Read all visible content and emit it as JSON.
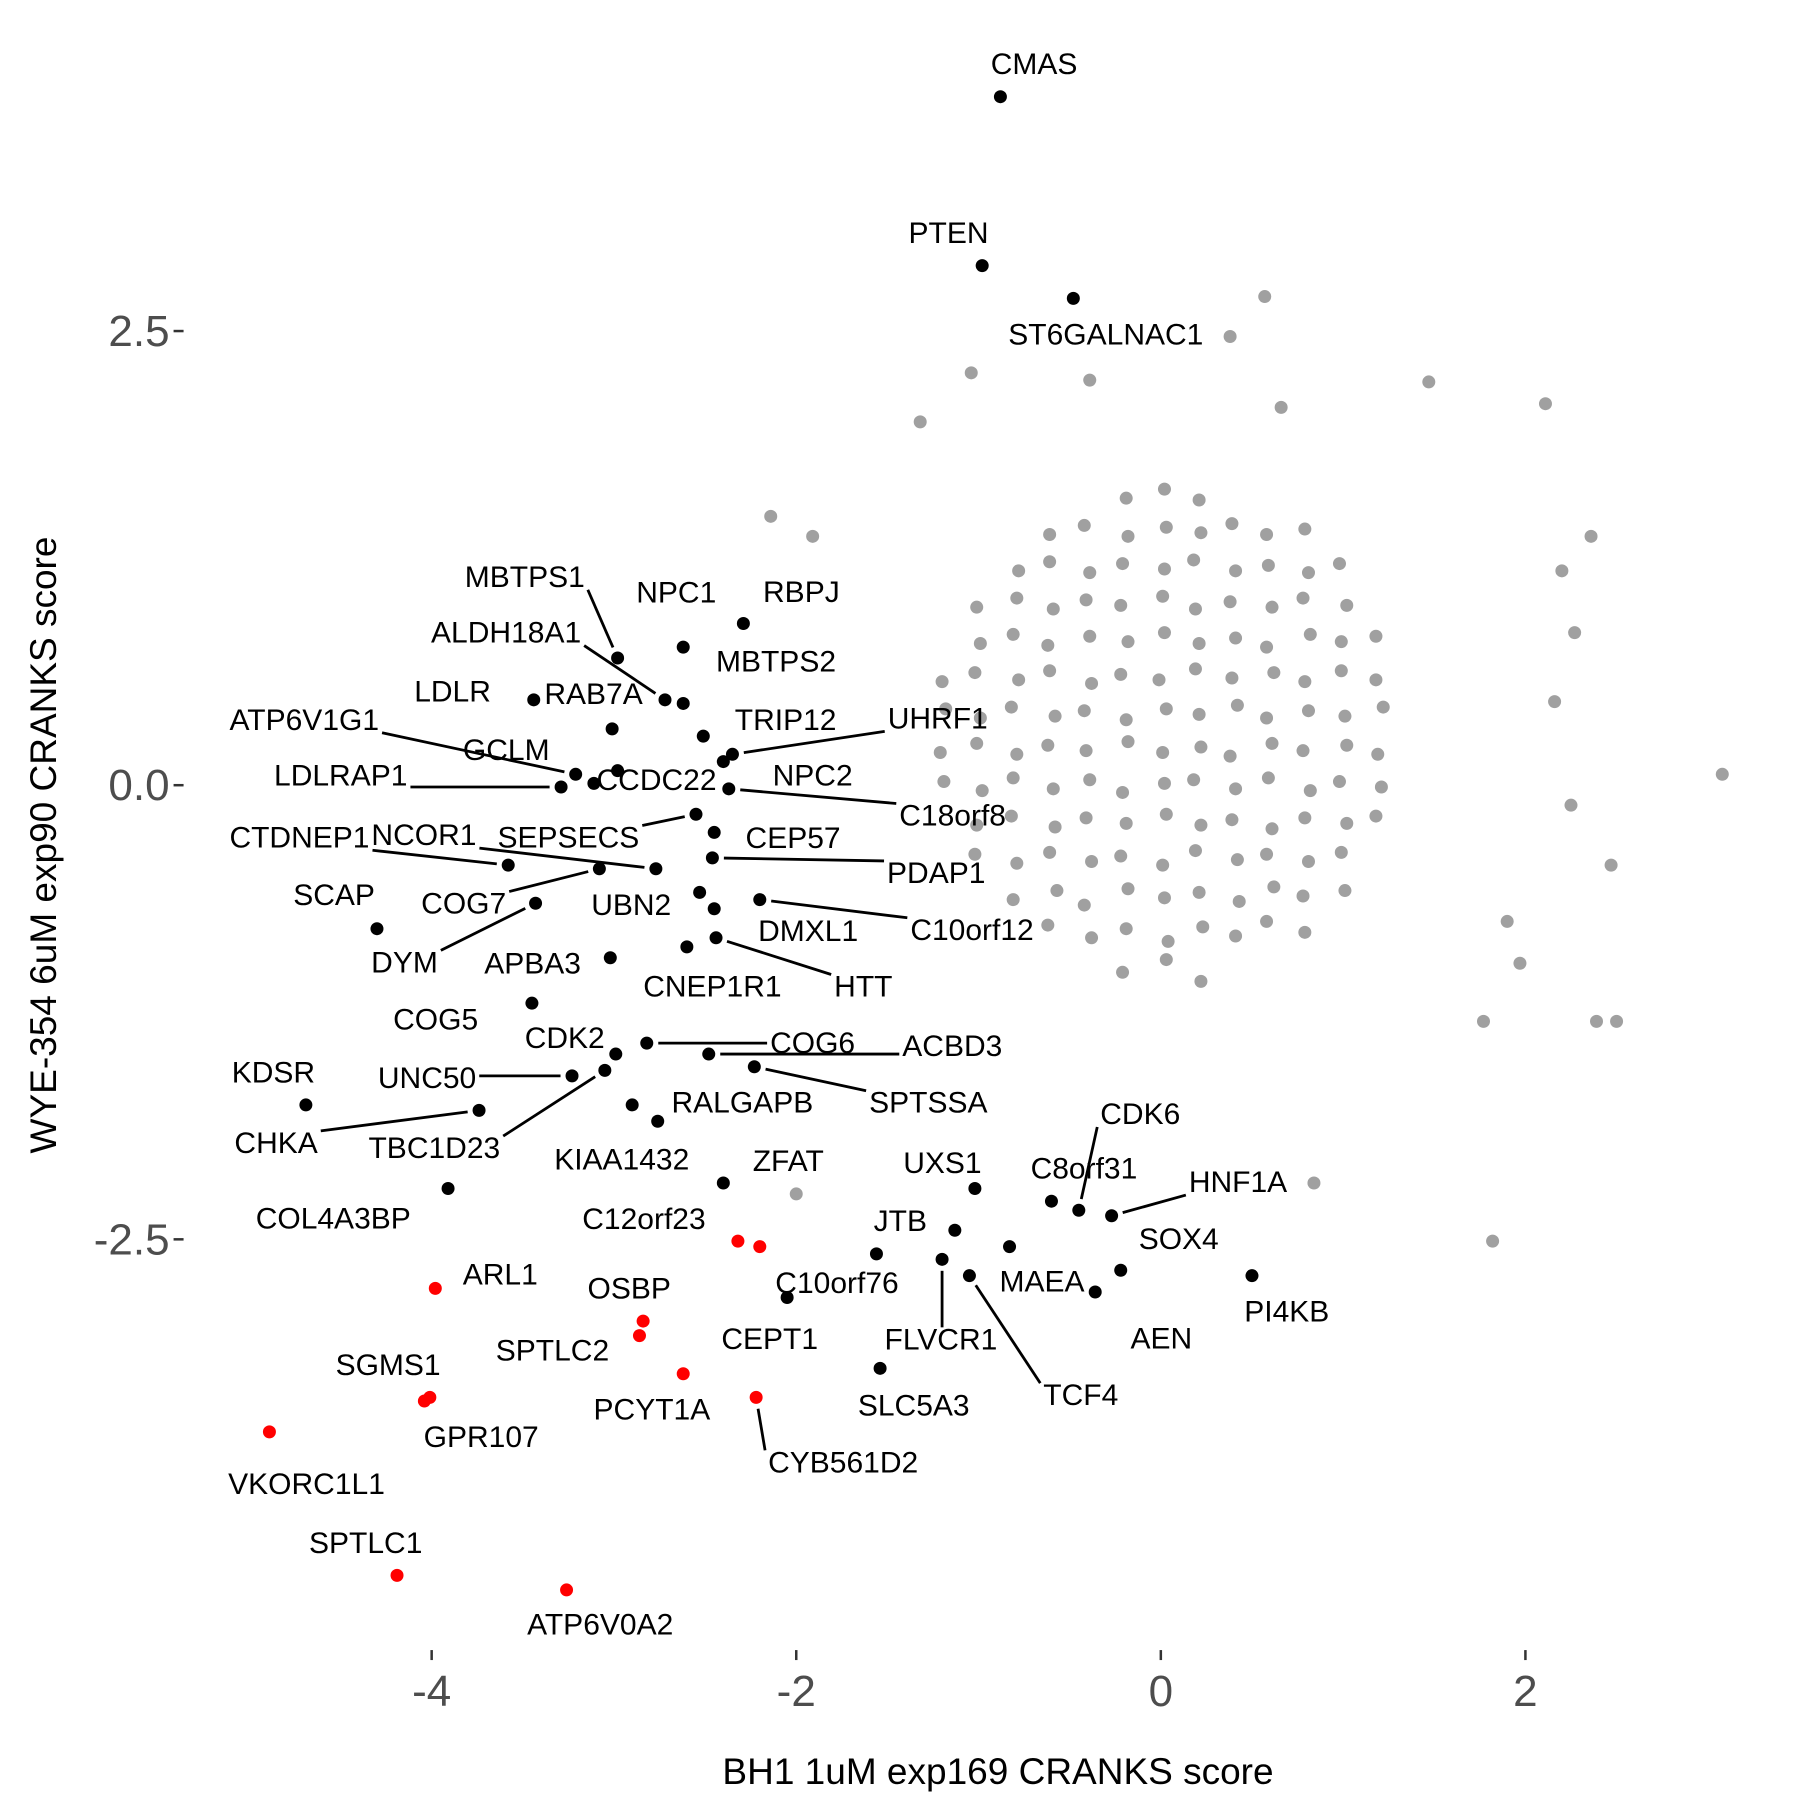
{
  "chart_data": {
    "type": "scatter",
    "x_label": "BH1 1uM exp169 CRANKS score",
    "y_label": "WYE-354 6uM exp90 CRANKS score",
    "xlim": [
      -5.35,
      3.15
    ],
    "ylim": [
      -4.75,
      4.15
    ],
    "xticks": [
      -4,
      -2,
      0,
      2
    ],
    "yticks": [
      -2.5,
      {
        "value": 0,
        "label": "0.0"
      },
      2.5
    ],
    "grid": false,
    "series": [
      {
        "color": "#a0a0a0",
        "x": [
          -0.21,
          0.03,
          0.22,
          -0.62,
          -0.38,
          -0.19,
          0.04,
          0.23,
          0.41,
          0.58,
          0.79,
          -0.81,
          -0.57,
          -0.42,
          -0.18,
          0.02,
          0.21,
          0.43,
          0.62,
          0.78,
          1.01,
          -1.02,
          -0.79,
          -0.61,
          -0.38,
          -0.22,
          0.01,
          0.19,
          0.42,
          0.58,
          0.81,
          0.99,
          -1.01,
          -0.82,
          -0.58,
          -0.41,
          -0.19,
          0.03,
          0.22,
          0.39,
          0.61,
          0.79,
          1.02,
          1.18,
          -1.19,
          -0.98,
          -0.81,
          -0.59,
          -0.39,
          -0.21,
          0.02,
          0.18,
          0.41,
          0.59,
          0.82,
          0.98,
          1.21,
          -1.21,
          -1.01,
          -0.79,
          -0.62,
          -0.41,
          -0.18,
          0.01,
          0.22,
          0.38,
          0.61,
          0.78,
          1.02,
          1.19,
          -1.18,
          -0.99,
          -0.82,
          -0.58,
          -0.42,
          -0.19,
          0.03,
          0.21,
          0.42,
          0.58,
          0.81,
          1.01,
          1.22,
          -1.2,
          -1.02,
          -0.78,
          -0.61,
          -0.38,
          -0.22,
          -0.01,
          0.19,
          0.39,
          0.62,
          0.79,
          0.99,
          1.18,
          -0.99,
          -0.81,
          -0.62,
          -0.39,
          -0.18,
          0.02,
          0.21,
          0.41,
          0.58,
          0.82,
          0.99,
          1.18,
          -1.01,
          -0.79,
          -0.59,
          -0.41,
          -0.22,
          0.01,
          0.19,
          0.38,
          0.61,
          0.78,
          1.02,
          -0.78,
          -0.61,
          -0.39,
          -0.21,
          0.02,
          0.18,
          0.41,
          0.59,
          0.81,
          0.98,
          -0.61,
          -0.42,
          -0.18,
          0.03,
          0.22,
          0.39,
          0.58,
          0.79,
          -0.19,
          0.02,
          0.21,
          3.08,
          2.47,
          2.5,
          2.39,
          1.82,
          0.57,
          2.11,
          2.36,
          2.27,
          0.38,
          -1.04,
          -1.91,
          -2.14,
          -2.0,
          0.84,
          1.47,
          0.66,
          -0.39,
          -1.32,
          2.2,
          2.16,
          2.25,
          1.9,
          1.97,
          1.77
        ],
        "values": [
          -1.03,
          -0.96,
          -1.08,
          -0.77,
          -0.84,
          -0.79,
          -0.86,
          -0.78,
          -0.83,
          -0.75,
          -0.81,
          -0.63,
          -0.58,
          -0.66,
          -0.57,
          -0.62,
          -0.59,
          -0.64,
          -0.56,
          -0.61,
          -0.58,
          -0.38,
          -0.43,
          -0.37,
          -0.42,
          -0.39,
          -0.44,
          -0.36,
          -0.41,
          -0.38,
          -0.42,
          -0.37,
          -0.22,
          -0.17,
          -0.23,
          -0.18,
          -0.21,
          -0.16,
          -0.22,
          -0.19,
          -0.24,
          -0.18,
          -0.21,
          -0.17,
          0.02,
          -0.03,
          0.04,
          -0.02,
          0.03,
          -0.04,
          0.01,
          0.03,
          -0.02,
          0.04,
          -0.03,
          0.02,
          -0.01,
          0.18,
          0.23,
          0.17,
          0.22,
          0.19,
          0.24,
          0.18,
          0.21,
          0.16,
          0.23,
          0.19,
          0.22,
          0.17,
          0.42,
          0.37,
          0.43,
          0.38,
          0.41,
          0.36,
          0.42,
          0.39,
          0.44,
          0.37,
          0.41,
          0.38,
          0.43,
          0.57,
          0.62,
          0.58,
          0.63,
          0.56,
          0.61,
          0.58,
          0.64,
          0.59,
          0.62,
          0.57,
          0.63,
          0.58,
          0.78,
          0.83,
          0.77,
          0.82,
          0.79,
          0.84,
          0.78,
          0.81,
          0.76,
          0.83,
          0.79,
          0.82,
          0.98,
          1.03,
          0.97,
          1.02,
          0.99,
          1.04,
          0.97,
          1.01,
          0.98,
          1.03,
          0.99,
          1.18,
          1.23,
          1.17,
          1.22,
          1.19,
          1.24,
          1.18,
          1.21,
          1.17,
          1.22,
          1.38,
          1.43,
          1.37,
          1.42,
          1.39,
          1.44,
          1.38,
          1.41,
          1.58,
          1.63,
          1.57,
          0.06,
          -0.44,
          -1.3,
          -1.3,
          -2.51,
          2.69,
          2.1,
          1.37,
          0.84,
          2.47,
          2.27,
          1.37,
          1.48,
          -2.25,
          -2.19,
          2.22,
          2.08,
          2.23,
          2.0,
          1.18,
          0.46,
          -0.11,
          -0.75,
          -0.98,
          -1.3
        ]
      },
      {
        "color": "#000000",
        "labels": [
          "CMAS",
          "PTEN",
          "ST6GALNAC1",
          "MBTPS1",
          "NPC1",
          "RBPJ",
          "ALDH18A1",
          "MBTPS2",
          "LDLR",
          "RAB7A",
          "TRIP12",
          "UHRF1",
          "ATP6V1G1",
          "GCLM",
          "CCDC22",
          "NPC2",
          "LDLRAP1",
          "C18orf8",
          "SEPSECS",
          "CTDNEP1",
          "NCOR1",
          "CEP57",
          "PDAP1",
          "COG7",
          "DYM",
          "SCAP",
          "UBN2",
          "DMXL1",
          "C10orf12",
          "APBA3",
          "CNEP1R1",
          "HTT",
          "COG5",
          "CDK2",
          "COG6",
          "ACBD3",
          "KDSR",
          "UNC50",
          "SPTSSA",
          "RALGAPB",
          "CHKA",
          "TBC1D23",
          "KIAA1432",
          "ZFAT",
          "COL4A3BP",
          "UXS1",
          "CDK6",
          "C8orf31",
          "HNF1A",
          "SOX4",
          "JTB",
          "MAEA",
          "C10orf76",
          "FLVCR1",
          "TCF4",
          "CEPT1",
          "AEN",
          "PI4KB",
          "SLC5A3"
        ],
        "x": [
          -0.88,
          -0.98,
          -0.48,
          -2.98,
          -2.62,
          -2.29,
          -2.72,
          -2.62,
          -3.44,
          -3.01,
          -2.51,
          -2.35,
          -3.21,
          -2.98,
          -3.11,
          -2.4,
          -3.29,
          -2.37,
          -2.55,
          -3.58,
          -2.77,
          -2.45,
          -2.46,
          -3.08,
          -3.43,
          -4.3,
          -2.53,
          -2.45,
          -2.2,
          -3.02,
          -2.6,
          -2.44,
          -3.45,
          -2.99,
          -2.82,
          -2.48,
          -4.69,
          -3.23,
          -2.23,
          -2.9,
          -3.74,
          -3.05,
          -2.76,
          -2.4,
          -3.91,
          -1.02,
          -0.45,
          -0.6,
          -0.27,
          -0.22,
          -1.13,
          -0.83,
          -1.56,
          -1.2,
          -1.05,
          -2.05,
          -0.36,
          0.5,
          -1.54
        ],
        "values": [
          3.79,
          2.86,
          2.68,
          0.7,
          0.76,
          0.89,
          0.47,
          0.45,
          0.47,
          0.31,
          0.27,
          0.17,
          0.06,
          0.08,
          0.01,
          0.13,
          -0.01,
          -0.02,
          -0.16,
          -0.44,
          -0.46,
          -0.26,
          -0.4,
          -0.46,
          -0.65,
          -0.79,
          -0.59,
          -0.68,
          -0.63,
          -0.95,
          -0.89,
          -0.84,
          -1.2,
          -1.48,
          -1.42,
          -1.48,
          -1.76,
          -1.6,
          -1.55,
          -1.76,
          -1.79,
          -1.57,
          -1.85,
          -2.19,
          -2.22,
          -2.22,
          -2.34,
          -2.29,
          -2.37,
          -2.67,
          -2.45,
          -2.54,
          -2.58,
          -2.61,
          -2.7,
          -2.82,
          -2.79,
          -2.7,
          -3.21
        ]
      },
      {
        "color": "#ff0000",
        "labels": [
          "C12orf23",
          null,
          "ARL1",
          "OSBP",
          "SPTLC2",
          "PCYT1A",
          "CYB561D2",
          "SGMS1",
          "GPR107",
          "VKORC1L1",
          "SPTLC1",
          "ATP6V0A2"
        ],
        "x": [
          -2.32,
          -2.2,
          -3.98,
          -2.84,
          -2.86,
          -2.62,
          -2.22,
          -4.01,
          -4.04,
          -4.89,
          -4.19,
          -3.26
        ],
        "values": [
          -2.51,
          -2.54,
          -2.77,
          -2.95,
          -3.03,
          -3.24,
          -3.37,
          -3.37,
          -3.39,
          -3.56,
          -4.35,
          -4.43
        ]
      }
    ]
  }
}
